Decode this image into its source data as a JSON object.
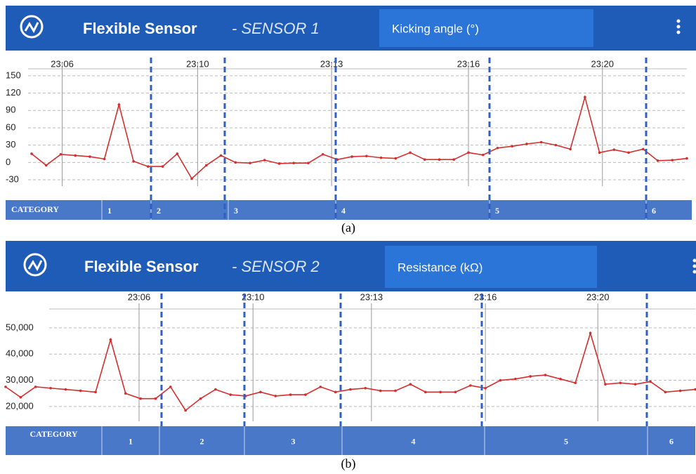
{
  "chart_data": [
    {
      "type": "line",
      "title": "Flexible Sensor",
      "subtitle": "- SENSOR 1",
      "metric": "Kicking angle (°)",
      "values": [
        15,
        -5,
        14,
        12,
        10,
        6,
        100,
        2,
        -7,
        -7,
        15,
        -28,
        -5,
        12,
        0,
        -1,
        4,
        -2,
        -1,
        -1,
        14,
        5,
        10,
        11,
        8,
        7,
        17,
        5,
        5,
        5,
        17,
        13,
        25,
        28,
        32,
        35,
        30,
        23,
        113,
        17,
        22,
        17,
        23,
        3,
        4,
        7
      ],
      "color": "#d32f2f",
      "ylim": [
        -47,
        162
      ],
      "yticks": [
        -30,
        0,
        30,
        60,
        90,
        120,
        150
      ],
      "xticks": [
        {
          "value": 2.1,
          "label": "23:06"
        },
        {
          "value": 11.4,
          "label": "23:10"
        },
        {
          "value": 20.6,
          "label": "23:13"
        },
        {
          "value": 30,
          "label": "23:16"
        },
        {
          "value": 39.2,
          "label": "23:20"
        }
      ],
      "grid": true,
      "category_title": "CATEGORY",
      "category_labels": [
        "1",
        "2",
        "3",
        "4",
        "5",
        "6"
      ],
      "caption": "(a)"
    },
    {
      "type": "line",
      "title": "Flexible Sensor",
      "subtitle": "- SENSOR 2",
      "metric": "Resistance (kΩ)",
      "values": [
        27500,
        23500,
        27500,
        27000,
        26500,
        26000,
        25500,
        45500,
        25000,
        23000,
        23000,
        27500,
        18500,
        23000,
        26500,
        24500,
        24000,
        25500,
        24000,
        24500,
        24500,
        27500,
        25500,
        26500,
        27000,
        26000,
        26000,
        28500,
        25500,
        25500,
        25500,
        28000,
        27000,
        30000,
        30500,
        31500,
        32000,
        30500,
        29000,
        48000,
        28500,
        29000,
        28500,
        29500,
        25500,
        26000,
        26500
      ],
      "color": "#d32f2f",
      "ylim": [
        13000,
        57200
      ],
      "yticks": [
        {
          "value": 20000,
          "label": "20,000"
        },
        {
          "value": 30000,
          "label": "30,000"
        },
        {
          "value": 40000,
          "label": "40,000"
        },
        {
          "value": 50000,
          "label": "50,000"
        }
      ],
      "xticks": [
        {
          "value": 8.9,
          "label": "23:06"
        },
        {
          "value": 16.5,
          "label": "23:10"
        },
        {
          "value": 24.4,
          "label": "23:13"
        },
        {
          "value": 32,
          "label": "23:16"
        },
        {
          "value": 39.5,
          "label": "23:20"
        }
      ],
      "grid": true,
      "category_title": "CATEGORY",
      "category_labels": [
        "1",
        "2",
        "3",
        "4",
        "5",
        "6"
      ],
      "caption": "(b)"
    }
  ]
}
